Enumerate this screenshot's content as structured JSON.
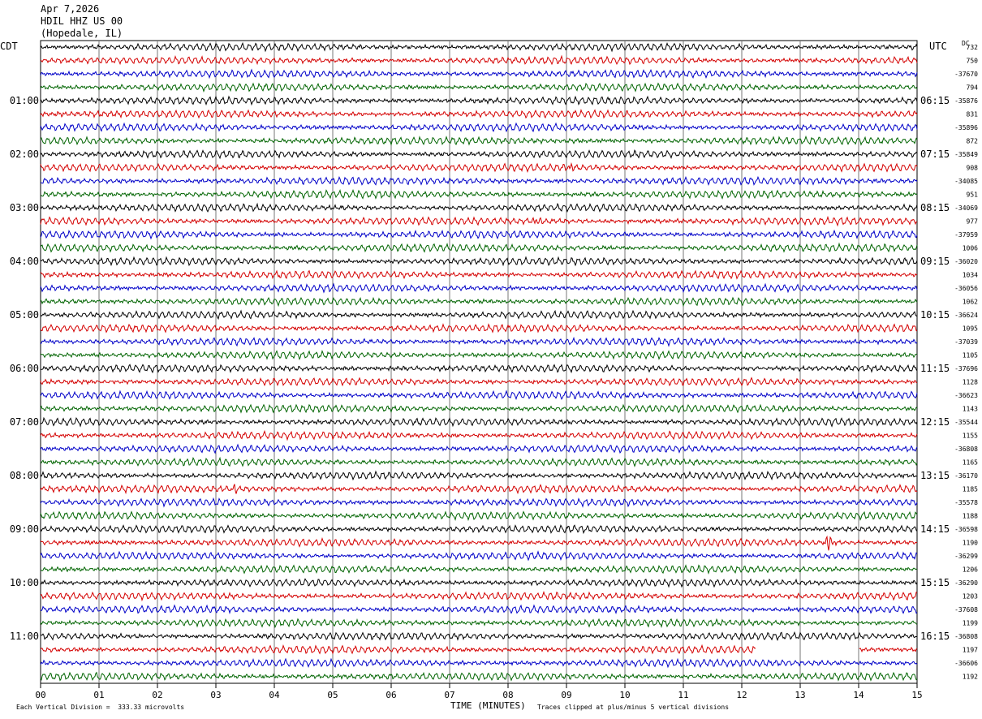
{
  "header": {
    "date": "Apr 7,2026",
    "station": "HDIL HHZ US 00",
    "location": "(Hopedale, IL)"
  },
  "left_label": "CDT",
  "right_label": "UTC",
  "dc_label": "DC",
  "footer": {
    "vertical_division": "Each Vertical Division =  333.33 microvolts",
    "xlabel": "TIME (MINUTES)",
    "clip_note": "Traces clipped at plus/minus 5 vertical divisions"
  },
  "chart_data": {
    "type": "line",
    "title": "HDIL HHZ US 00 (Hopedale, IL) Apr 7,2026",
    "xlabel": "TIME (MINUTES)",
    "xlim": [
      0,
      15
    ],
    "x_ticks": [
      "00",
      "01",
      "02",
      "03",
      "04",
      "05",
      "06",
      "07",
      "08",
      "09",
      "10",
      "11",
      "12",
      "13",
      "14",
      "15"
    ],
    "trace_count": 48,
    "trace_colors": [
      "#000000",
      "#d40000",
      "#0000c8",
      "#006400"
    ],
    "hour_labels_cdt": [
      "01:00",
      "02:00",
      "03:00",
      "04:00",
      "05:00",
      "06:00",
      "07:00",
      "08:00",
      "09:00",
      "10:00",
      "11:00"
    ],
    "hour_labels_utc": [
      "06:15",
      "07:15",
      "08:15",
      "09:15",
      "10:15",
      "11:15",
      "12:15",
      "13:15",
      "14:15",
      "15:15",
      "16:15"
    ],
    "dc_offsets": [
      "732",
      "750",
      "-37670",
      "794",
      "-35876",
      "831",
      "-35896",
      "872",
      "-35849",
      "908",
      "-34085",
      "951",
      "-34069",
      "977",
      "-37959",
      "1006",
      "-36020",
      "1034",
      "-36056",
      "1062",
      "-36624",
      "1095",
      "-37039",
      "1105",
      "-37696",
      "1128",
      "-36623",
      "1143",
      "-35544",
      "1155",
      "-36808",
      "1165",
      "-36170",
      "1185",
      "-35578",
      "1188",
      "-36598",
      "1190",
      "-36299",
      "1206",
      "-36290",
      "1203",
      "-37608",
      "1199",
      "-36808",
      "1197",
      "-36606",
      "1192"
    ],
    "data_gaps": [
      {
        "trace": 45,
        "from_minute": 12.25,
        "to_minute": 14.0
      }
    ],
    "events": [
      {
        "trace": 37,
        "minute": 13.5,
        "note": "large spike"
      },
      {
        "trace": 33,
        "minute": 3.3
      },
      {
        "trace": 13,
        "minute": 8.5
      },
      {
        "trace": 9,
        "minute": 9.05
      }
    ],
    "grid": "vertical lines each minute"
  }
}
